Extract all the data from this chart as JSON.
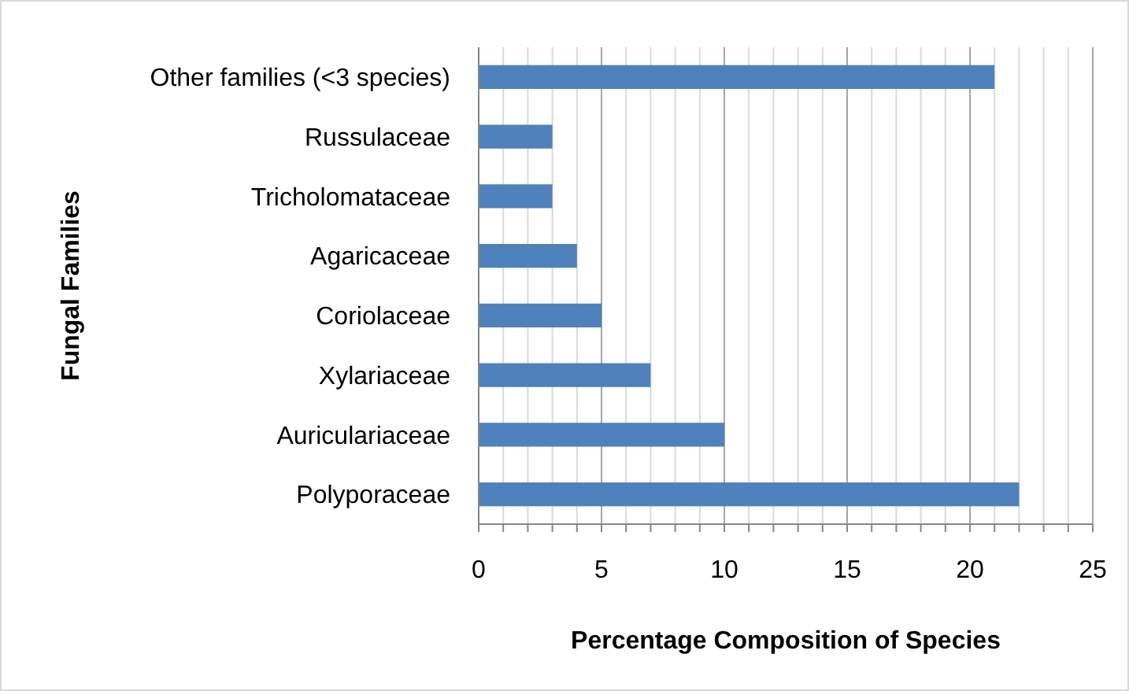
{
  "chart_data": {
    "type": "bar",
    "orientation": "horizontal",
    "xlabel": "Percentage Composition of Species",
    "ylabel": "Fungal Families",
    "categories": [
      "Other families (<3 species)",
      "Russulaceae",
      "Tricholomataceae",
      "Agaricaceae",
      "Coriolaceae",
      "Xylariaceae",
      "Auriculariaceae",
      "Polyporaceae"
    ],
    "values": [
      21,
      3,
      3,
      4,
      5,
      7,
      10,
      22
    ],
    "color": "#4f81bd",
    "xlim": [
      0,
      25
    ],
    "xticks": [
      0,
      {
        "value": 1,
        "label": null
      },
      {
        "value": 2,
        "label": null
      },
      {
        "value": 3,
        "label": null
      },
      {
        "value": 4,
        "label": null
      },
      5,
      {
        "value": 6,
        "label": null
      },
      {
        "value": 7,
        "label": null
      },
      {
        "value": 8,
        "label": null
      },
      {
        "value": 9,
        "label": null
      },
      10,
      {
        "value": 11,
        "label": null
      },
      {
        "value": 12,
        "label": null
      },
      {
        "value": 13,
        "label": null
      },
      {
        "value": 14,
        "label": null
      },
      15,
      {
        "value": 16,
        "label": null
      },
      {
        "value": 17,
        "label": null
      },
      {
        "value": 18,
        "label": null
      },
      {
        "value": 19,
        "label": null
      },
      20,
      {
        "value": 21,
        "label": null
      },
      {
        "value": 22,
        "label": null
      },
      {
        "value": 23,
        "label": null
      },
      {
        "value": 24,
        "label": null
      },
      25
    ],
    "grid": "x"
  }
}
